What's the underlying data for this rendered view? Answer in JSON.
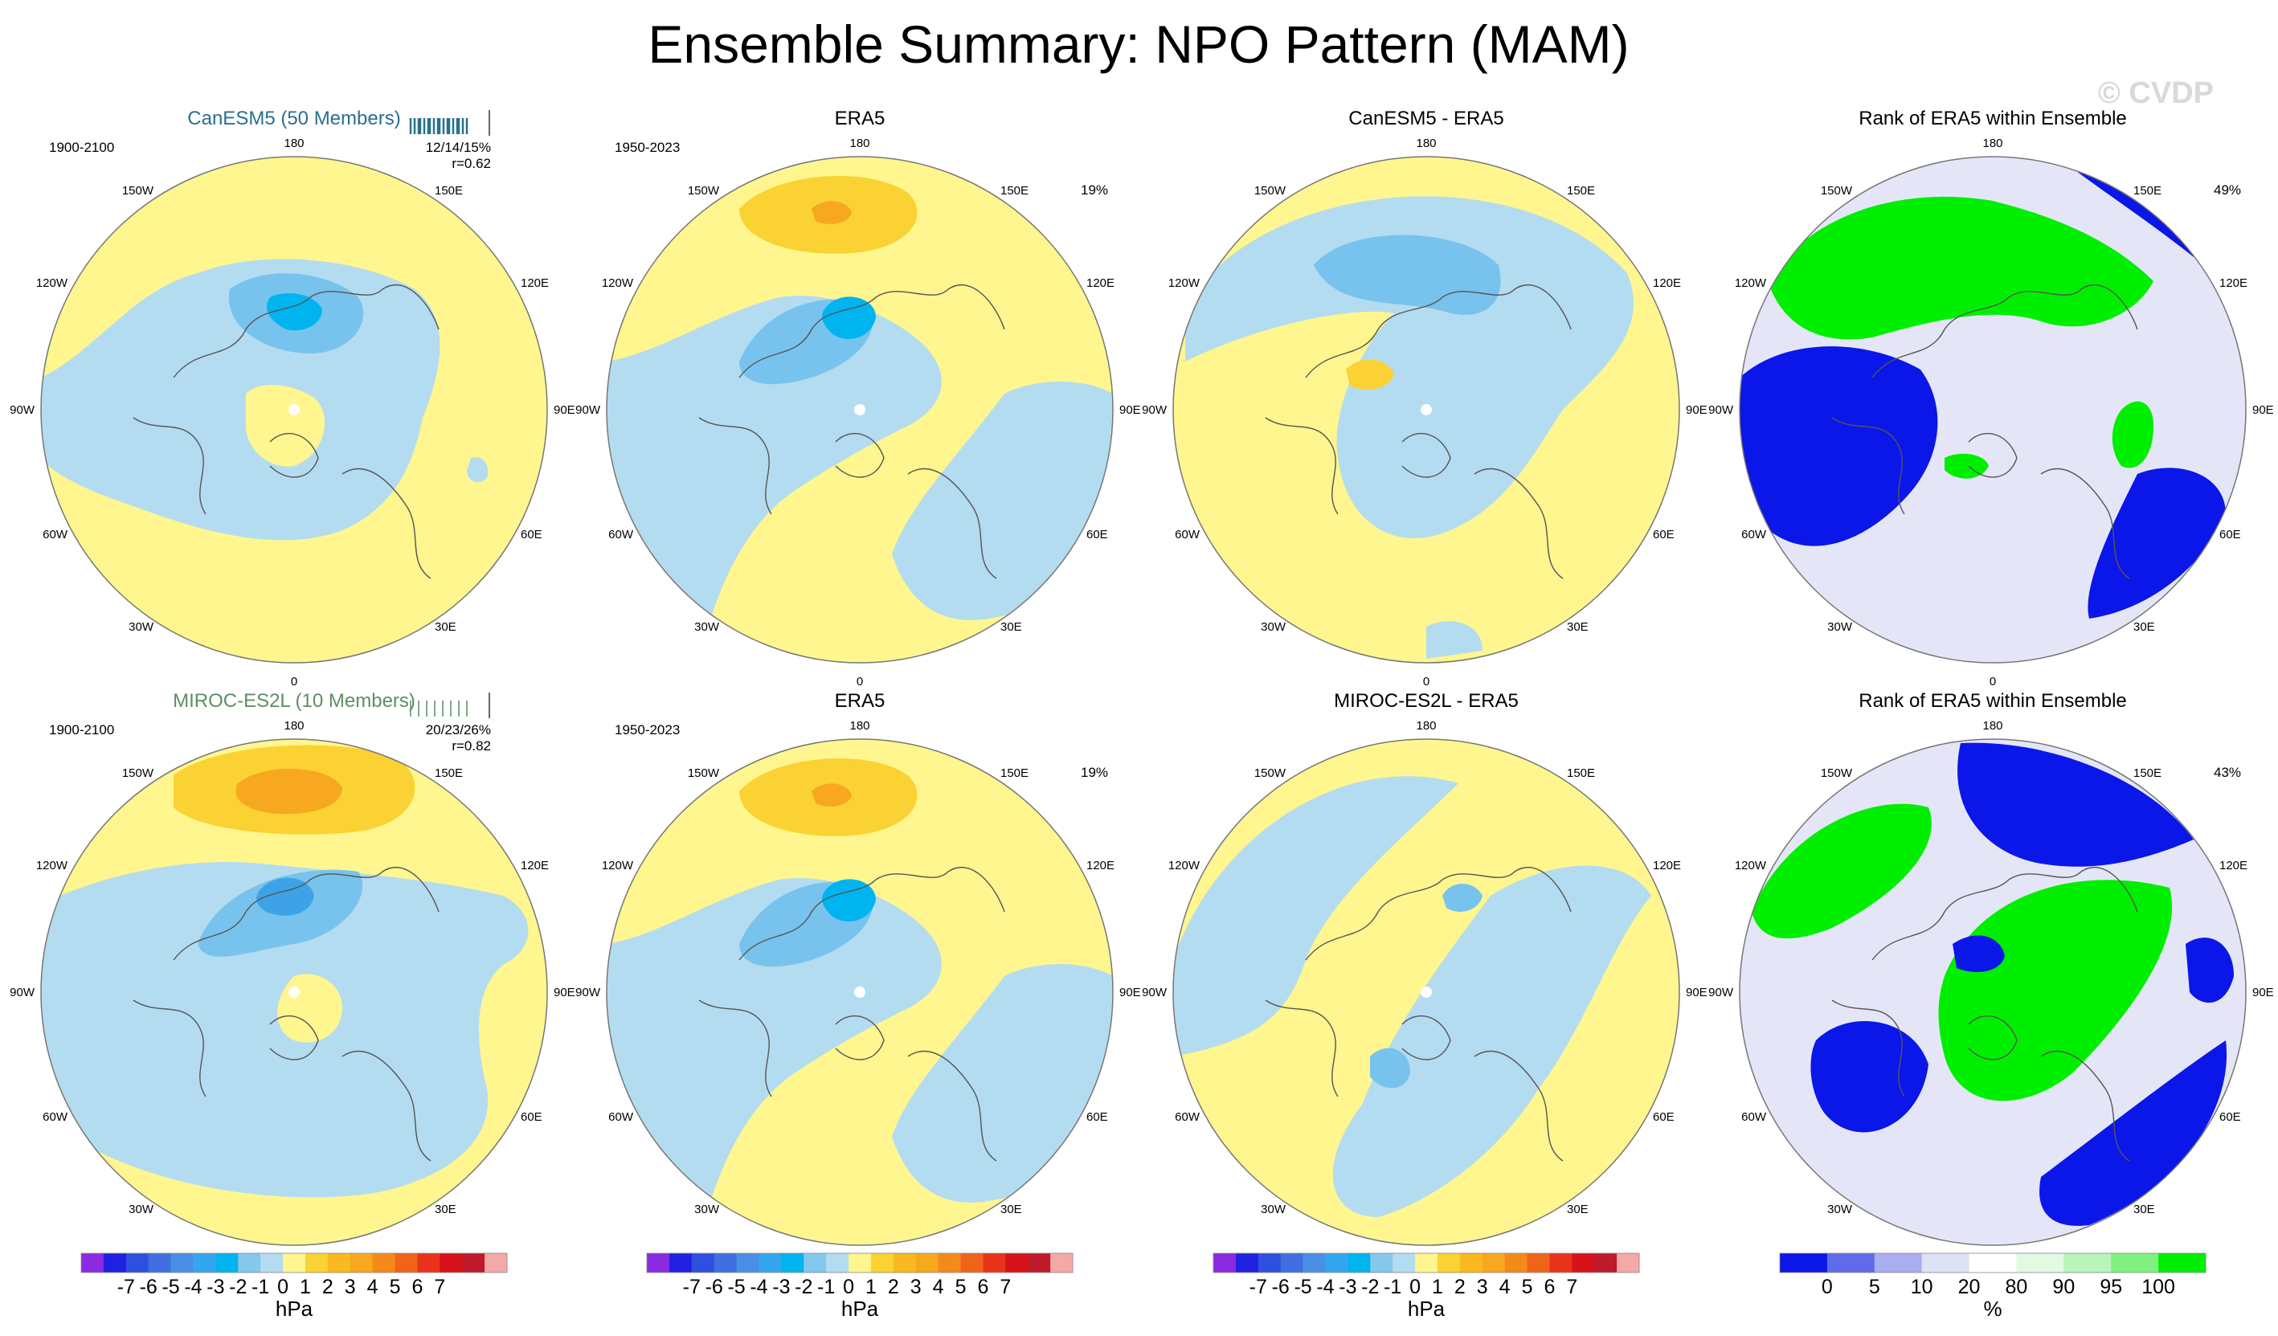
{
  "title": "Ensemble Summary: NPO Pattern (MAM)",
  "watermark": "© CVDP",
  "colors": {
    "yellow": "#fff68f",
    "light_blue": "#b4dcf0",
    "mid_blue": "#78c3ee",
    "dark_blue": "#3ea3e6",
    "cyan": "#00b4ef",
    "light_orange": "#fbd233",
    "orange": "#f7a81f",
    "canesm_title": "#2a6f8e",
    "miroc_title": "#5e8f60",
    "rank_blue": "#0b16e8",
    "rank_green": "#00ef00"
  },
  "lon_labels": {
    "top": "180",
    "bottom": "0",
    "left": "90W",
    "right": "90E",
    "ul1": "150W",
    "ul2": "120W",
    "ur1": "150E",
    "ur2": "120E",
    "ll1": "60W",
    "ll2": "30W",
    "lr1": "60E",
    "lr2": "30E"
  },
  "rows": [
    {
      "panels": [
        {
          "title": "CanESM5 (50 Members)",
          "period": "1900-2100",
          "stats": "12/14/15%",
          "corr": "r=0.62",
          "kind": "model"
        },
        {
          "title": "ERA5",
          "period": "1950-2023",
          "pct": "19%",
          "kind": "obs"
        },
        {
          "title": "CanESM5 - ERA5",
          "kind": "diff"
        },
        {
          "title": "Rank of ERA5 within Ensemble",
          "pct": "49%",
          "kind": "rank"
        }
      ]
    },
    {
      "panels": [
        {
          "title": "MIROC-ES2L (10 Members)",
          "period": "1900-2100",
          "stats": "20/23/26%",
          "corr": "r=0.82",
          "kind": "model"
        },
        {
          "title": "ERA5",
          "period": "1950-2023",
          "pct": "19%",
          "kind": "obs"
        },
        {
          "title": "MIROC-ES2L - ERA5",
          "kind": "diff"
        },
        {
          "title": "Rank of ERA5 within Ensemble",
          "pct": "43%",
          "kind": "rank"
        }
      ]
    }
  ],
  "colorbar_hpa": {
    "ticks": [
      "-7",
      "-6",
      "-5",
      "-4",
      "-3",
      "-2",
      "-1",
      "0",
      "1",
      "2",
      "3",
      "4",
      "5",
      "6",
      "7"
    ],
    "unit": "hPa",
    "colors": [
      "#8a2be2",
      "#2020e0",
      "#2f4fe0",
      "#3f6fe0",
      "#4a8fe6",
      "#34a6ef",
      "#00b4ef",
      "#85c8ee",
      "#b4dcf0",
      "#fff68f",
      "#fbd233",
      "#f9b91f",
      "#f7a81f",
      "#f48a1a",
      "#f0641a",
      "#e8331a",
      "#d8121a",
      "#c01a2a",
      "#f5a8a8"
    ]
  },
  "colorbar_rank": {
    "ticks": [
      "0",
      "5",
      "10",
      "20",
      "80",
      "90",
      "95",
      "100"
    ],
    "unit": "%",
    "colors": [
      "#0b16e8",
      "#5f6be8",
      "#a9aef0",
      "#dfe1f7",
      "#ffffff",
      "#e2f9e2",
      "#b9f5b9",
      "#80f080",
      "#00ef00"
    ]
  }
}
